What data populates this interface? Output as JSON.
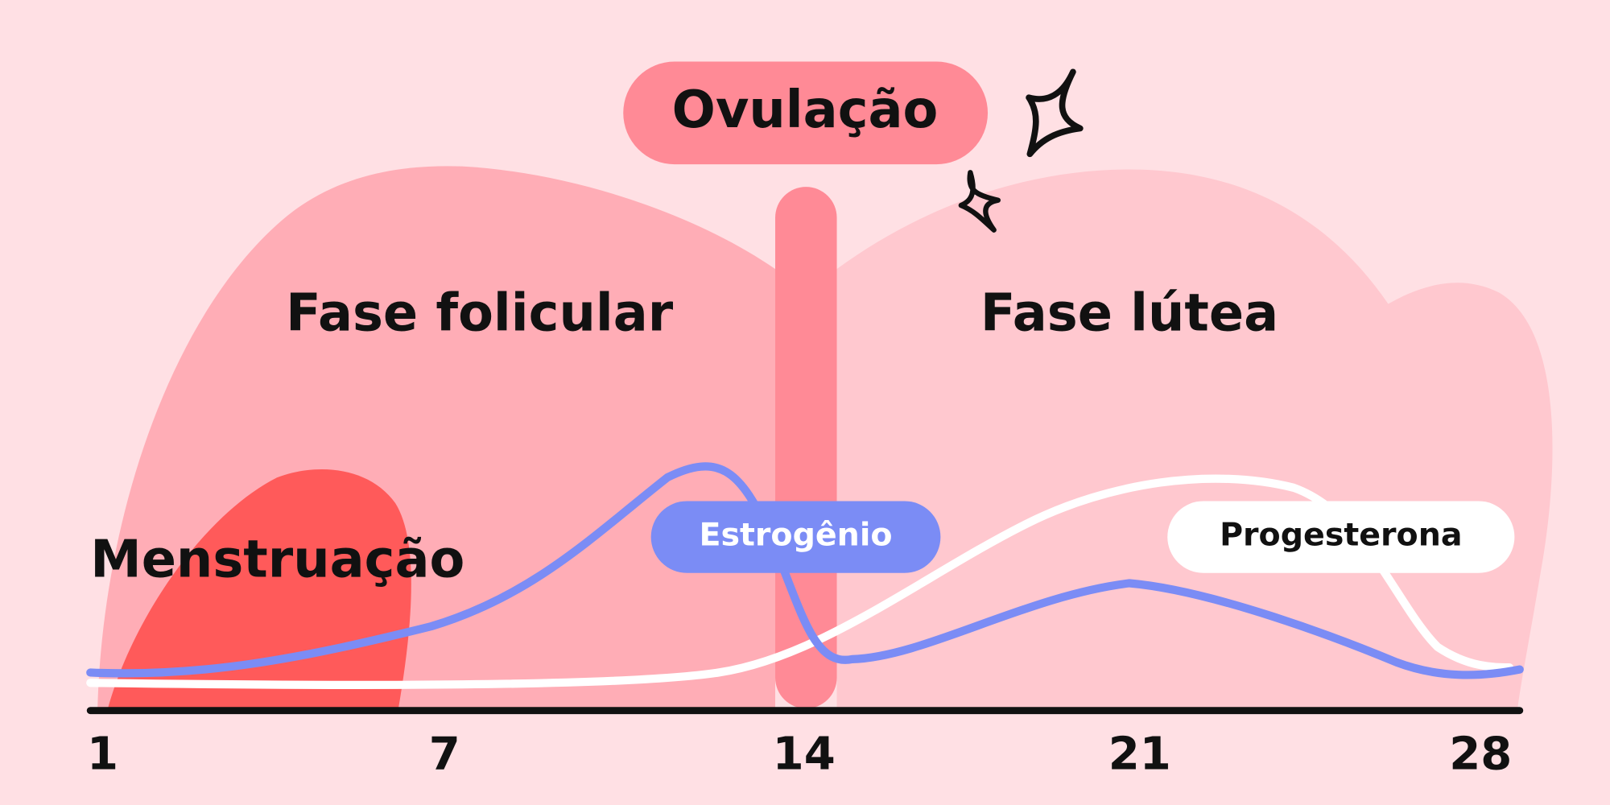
{
  "title": "Ovulação",
  "phases": {
    "follicular": "Fase folicular",
    "luteal": "Fase lútea",
    "menstruation": "Menstruação"
  },
  "hormones": {
    "estrogen": "Estrogênio",
    "progesterone": "Progesterona"
  },
  "axis": {
    "ticks": [
      1,
      7,
      14,
      21,
      28
    ]
  }
}
